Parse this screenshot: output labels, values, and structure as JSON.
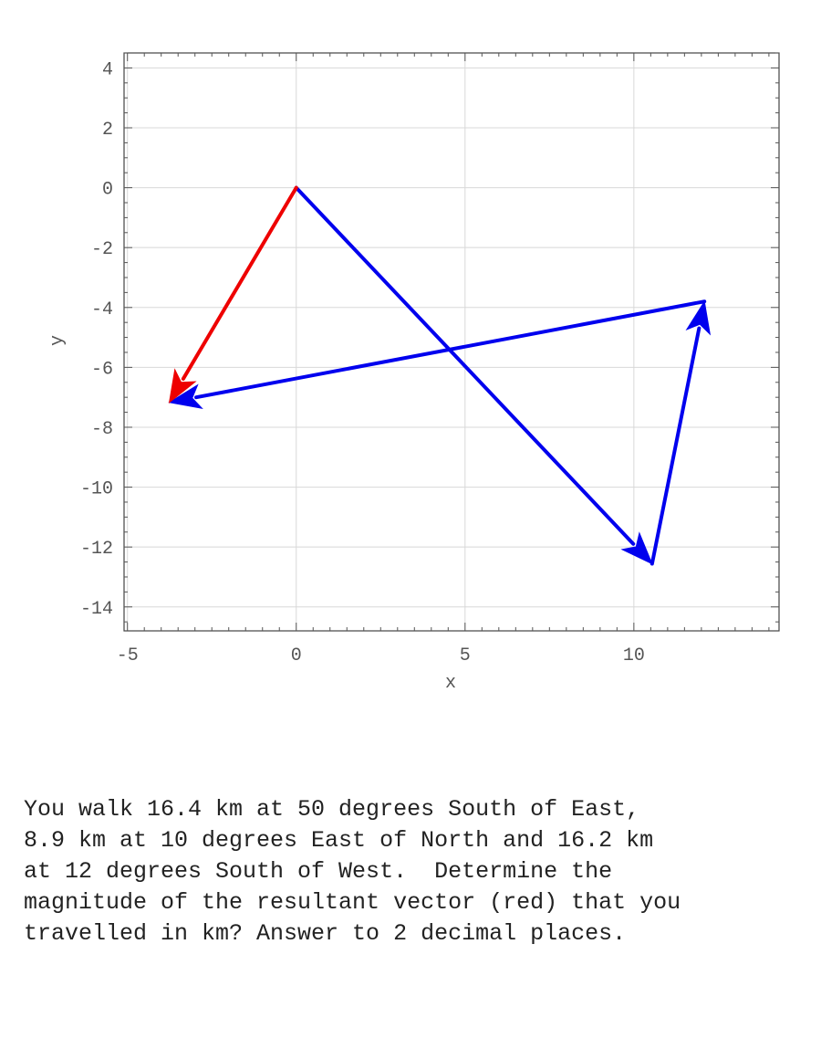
{
  "chart_data": {
    "type": "vector-diagram",
    "xlabel": "x",
    "ylabel": "y",
    "xlim": [
      -5.1,
      14.3
    ],
    "ylim": [
      -14.8,
      4.5
    ],
    "xticks": [
      -5,
      0,
      5,
      10
    ],
    "yticks": [
      4,
      2,
      0,
      -2,
      -4,
      -6,
      -8,
      -10,
      -12,
      -14
    ],
    "xtick_labels": [
      "-5",
      "0",
      "5",
      "10"
    ],
    "ytick_labels": [
      "4",
      "2",
      "0",
      "-2",
      "-4",
      "-6",
      "-8",
      "-10",
      "-12",
      "-14"
    ],
    "grid": true,
    "vectors": [
      {
        "from": [
          0,
          0
        ],
        "to": [
          10.54,
          -12.56
        ],
        "color": "#0000ee"
      },
      {
        "from": [
          10.54,
          -12.56
        ],
        "to": [
          12.09,
          -3.8
        ],
        "color": "#0000ee"
      },
      {
        "from": [
          12.09,
          -3.8
        ],
        "to": [
          -3.76,
          -7.17
        ],
        "color": "#0000ee"
      },
      {
        "from": [
          0,
          0
        ],
        "to": [
          -3.76,
          -7.17
        ],
        "color": "#ee0000"
      }
    ]
  },
  "question": {
    "lines": [
      "You walk 16.4 km at 50 degrees South of East,",
      "8.9 km at 10 degrees East of North and 16.2 km",
      "at 12 degrees South of West.  Determine the",
      "magnitude of the resultant vector (red) that you",
      "travelled in km? Answer to 2 decimal places."
    ]
  }
}
